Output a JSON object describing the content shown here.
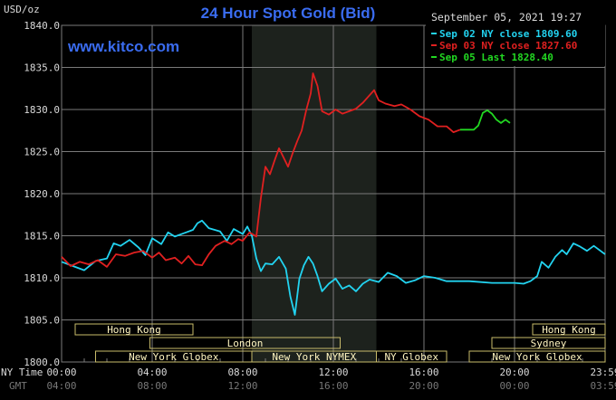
{
  "chart_data": {
    "type": "line",
    "title": "24 Hour Spot Gold (Bid)",
    "source": "www.kitco.com",
    "timestamp": "September 05, 2021 19:27",
    "y_unit": "USD/oz",
    "ylim": [
      1800,
      1840
    ],
    "y_ticks": [
      "1840.0",
      "1835.0",
      "1830.0",
      "1825.0",
      "1820.0",
      "1815.0",
      "1810.0",
      "1805.0",
      "1800.0"
    ],
    "xlim_hours": [
      0,
      24
    ],
    "x_row_labels": [
      "NY Time",
      "GMT"
    ],
    "x_ticks_ny": [
      "00:00",
      "04:00",
      "08:00",
      "12:00",
      "16:00",
      "20:00",
      "23:59"
    ],
    "x_ticks_gmt": [
      "04:00",
      "08:00",
      "12:00",
      "16:00",
      "20:00",
      "00:00",
      "03:59"
    ],
    "shaded_session_hours": [
      8.4,
      13.9
    ],
    "grid": true,
    "legend_position": "top-right",
    "colors": {
      "background": "#000000",
      "grid": "#7a7a7a",
      "text": "#d9d9d9",
      "title": "#3a6cf0",
      "shade": "#1d221d",
      "session_fill": "#fff5c0",
      "session_stroke": "#c8bb6a"
    },
    "series": [
      {
        "name": "Sep 02 NY close 1809.60",
        "color": "#22d3f0",
        "points": [
          [
            0,
            1811.9
          ],
          [
            0.5,
            1811.4
          ],
          [
            1,
            1810.9
          ],
          [
            1.5,
            1812.0
          ],
          [
            2,
            1812.3
          ],
          [
            2.3,
            1814.1
          ],
          [
            2.6,
            1813.8
          ],
          [
            3,
            1814.5
          ],
          [
            3.4,
            1813.6
          ],
          [
            3.7,
            1812.7
          ],
          [
            4,
            1814.7
          ],
          [
            4.4,
            1814.0
          ],
          [
            4.7,
            1815.4
          ],
          [
            5,
            1814.9
          ],
          [
            5.4,
            1815.3
          ],
          [
            5.8,
            1815.7
          ],
          [
            6,
            1816.5
          ],
          [
            6.2,
            1816.8
          ],
          [
            6.5,
            1815.9
          ],
          [
            7,
            1815.5
          ],
          [
            7.3,
            1814.4
          ],
          [
            7.6,
            1815.8
          ],
          [
            8,
            1815.2
          ],
          [
            8.2,
            1816.1
          ],
          [
            8.4,
            1815.0
          ],
          [
            8.6,
            1812.3
          ],
          [
            8.8,
            1810.8
          ],
          [
            9,
            1811.7
          ],
          [
            9.3,
            1811.6
          ],
          [
            9.6,
            1812.5
          ],
          [
            9.9,
            1811.1
          ],
          [
            10.1,
            1807.8
          ],
          [
            10.3,
            1805.6
          ],
          [
            10.5,
            1809.9
          ],
          [
            10.7,
            1811.5
          ],
          [
            10.9,
            1812.5
          ],
          [
            11.1,
            1811.7
          ],
          [
            11.3,
            1810.2
          ],
          [
            11.5,
            1808.4
          ],
          [
            11.8,
            1809.3
          ],
          [
            12.1,
            1809.9
          ],
          [
            12.4,
            1808.7
          ],
          [
            12.7,
            1809.1
          ],
          [
            13,
            1808.4
          ],
          [
            13.3,
            1809.3
          ],
          [
            13.6,
            1809.8
          ],
          [
            14,
            1809.5
          ],
          [
            14.4,
            1810.6
          ],
          [
            14.8,
            1810.2
          ],
          [
            15.2,
            1809.4
          ],
          [
            15.6,
            1809.7
          ],
          [
            16,
            1810.2
          ],
          [
            16.5,
            1810.0
          ],
          [
            17,
            1809.6
          ],
          [
            18,
            1809.6
          ],
          [
            19,
            1809.4
          ],
          [
            20,
            1809.4
          ],
          [
            20.4,
            1809.3
          ],
          [
            20.7,
            1809.6
          ],
          [
            21,
            1810.2
          ],
          [
            21.2,
            1811.9
          ],
          [
            21.5,
            1811.2
          ],
          [
            21.8,
            1812.5
          ],
          [
            22.1,
            1813.3
          ],
          [
            22.3,
            1812.8
          ],
          [
            22.6,
            1814.1
          ],
          [
            22.9,
            1813.7
          ],
          [
            23.2,
            1813.2
          ],
          [
            23.5,
            1813.8
          ],
          [
            24,
            1812.8
          ]
        ]
      },
      {
        "name": "Sep 03 NY close 1827.60",
        "color": "#e02020",
        "points": [
          [
            0,
            1812.5
          ],
          [
            0.4,
            1811.4
          ],
          [
            0.8,
            1811.9
          ],
          [
            1.2,
            1811.6
          ],
          [
            1.6,
            1812.1
          ],
          [
            2,
            1811.3
          ],
          [
            2.4,
            1812.8
          ],
          [
            2.8,
            1812.6
          ],
          [
            3.2,
            1813.0
          ],
          [
            3.6,
            1813.2
          ],
          [
            4,
            1812.4
          ],
          [
            4.3,
            1813.0
          ],
          [
            4.6,
            1812.1
          ],
          [
            5,
            1812.4
          ],
          [
            5.3,
            1811.7
          ],
          [
            5.6,
            1812.6
          ],
          [
            5.9,
            1811.6
          ],
          [
            6.2,
            1811.5
          ],
          [
            6.5,
            1812.8
          ],
          [
            6.8,
            1813.8
          ],
          [
            7.2,
            1814.4
          ],
          [
            7.5,
            1814.0
          ],
          [
            7.8,
            1814.6
          ],
          [
            8,
            1814.4
          ],
          [
            8.3,
            1815.4
          ],
          [
            8.6,
            1814.9
          ],
          [
            8.8,
            1819.5
          ],
          [
            9,
            1823.2
          ],
          [
            9.2,
            1822.3
          ],
          [
            9.4,
            1823.9
          ],
          [
            9.6,
            1825.4
          ],
          [
            9.8,
            1824.3
          ],
          [
            10,
            1823.2
          ],
          [
            10.2,
            1824.8
          ],
          [
            10.4,
            1826.2
          ],
          [
            10.6,
            1827.5
          ],
          [
            10.8,
            1829.9
          ],
          [
            11,
            1831.9
          ],
          [
            11.1,
            1834.3
          ],
          [
            11.3,
            1832.8
          ],
          [
            11.5,
            1829.8
          ],
          [
            11.8,
            1829.4
          ],
          [
            12.1,
            1830.0
          ],
          [
            12.4,
            1829.5
          ],
          [
            12.7,
            1829.8
          ],
          [
            13,
            1830.1
          ],
          [
            13.3,
            1830.8
          ],
          [
            13.6,
            1831.7
          ],
          [
            13.8,
            1832.3
          ],
          [
            14,
            1831.1
          ],
          [
            14.3,
            1830.7
          ],
          [
            14.7,
            1830.4
          ],
          [
            15,
            1830.6
          ],
          [
            15.4,
            1830.0
          ],
          [
            15.8,
            1829.2
          ],
          [
            16.2,
            1828.8
          ],
          [
            16.6,
            1828.0
          ],
          [
            17,
            1828.0
          ],
          [
            17.3,
            1827.3
          ],
          [
            17.6,
            1827.6
          ]
        ]
      },
      {
        "name": "Sep 05 Last 1828.40",
        "color": "#22d822",
        "points": [
          [
            17.6,
            1827.6
          ],
          [
            18.2,
            1827.6
          ],
          [
            18.4,
            1828.1
          ],
          [
            18.6,
            1829.6
          ],
          [
            18.8,
            1829.9
          ],
          [
            19,
            1829.5
          ],
          [
            19.2,
            1828.8
          ],
          [
            19.4,
            1828.4
          ],
          [
            19.6,
            1828.8
          ],
          [
            19.8,
            1828.4
          ]
        ]
      }
    ],
    "sessions": [
      {
        "label": "Hong Kong",
        "start": 0.6,
        "end": 5.8,
        "row": 0
      },
      {
        "label": "London",
        "start": 3.9,
        "end": 12.3,
        "row": 1
      },
      {
        "label": "New York Globex",
        "start": 1.5,
        "end": 8.4,
        "row": 2
      },
      {
        "label": "New York NYMEX",
        "start": 8.4,
        "end": 13.9,
        "row": 2
      },
      {
        "label": "NY Globex",
        "start": 13.9,
        "end": 17.0,
        "row": 2
      },
      {
        "label": "Hong Kong",
        "start": 20.8,
        "end": 24.0,
        "row": 0
      },
      {
        "label": "Sydney",
        "start": 19.0,
        "end": 24.0,
        "row": 1
      },
      {
        "label": "New York Globex",
        "start": 18.0,
        "end": 24.0,
        "row": 2
      }
    ]
  }
}
